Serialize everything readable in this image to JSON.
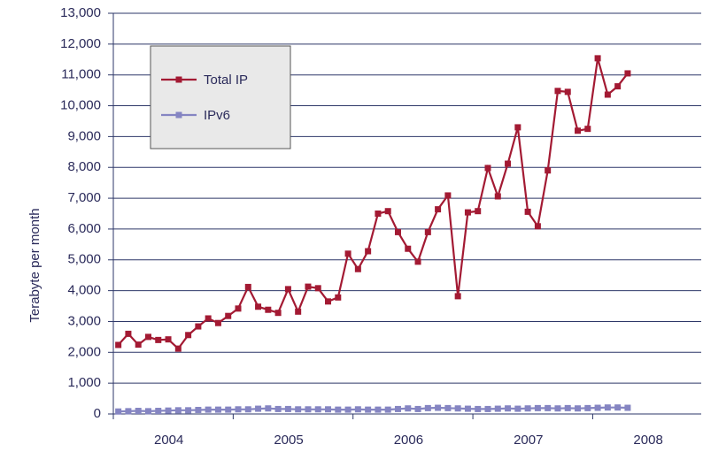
{
  "chart_data": {
    "type": "line",
    "y_label": "Terabyte per month",
    "categories": [
      "2004",
      null,
      null,
      null,
      null,
      null,
      null,
      null,
      null,
      null,
      null,
      null,
      "2005",
      null,
      null,
      null,
      null,
      null,
      null,
      null,
      null,
      null,
      null,
      null,
      "2006",
      null,
      null,
      null,
      null,
      null,
      null,
      null,
      null,
      null,
      null,
      null,
      "2007",
      null,
      null,
      null,
      null,
      null,
      null,
      null,
      null,
      null,
      null,
      null,
      "2008",
      null,
      null,
      null
    ],
    "series": [
      {
        "name": "Total IP",
        "color": "#a31a33",
        "values": [
          2240,
          2600,
          2250,
          2500,
          2400,
          2420,
          2120,
          2560,
          2840,
          3100,
          2950,
          3180,
          3420,
          4120,
          3480,
          3380,
          3280,
          4050,
          3320,
          4130,
          4080,
          3650,
          3780,
          5200,
          4700,
          5280,
          6500,
          6580,
          5900,
          5360,
          4940,
          5900,
          6640,
          7090,
          3820,
          6540,
          6580,
          7980,
          7060,
          8120,
          9300,
          6560,
          6090,
          7900,
          10480,
          10450,
          9190,
          9250,
          11540,
          10360,
          10630,
          11050
        ]
      },
      {
        "name": "IPv6",
        "color": "#8585c2",
        "values": [
          80,
          90,
          100,
          90,
          100,
          110,
          120,
          120,
          130,
          140,
          140,
          140,
          150,
          150,
          170,
          180,
          160,
          160,
          150,
          150,
          150,
          150,
          140,
          140,
          150,
          140,
          140,
          140,
          160,
          180,
          160,
          190,
          200,
          190,
          180,
          170,
          160,
          160,
          170,
          180,
          170,
          180,
          190,
          190,
          180,
          190,
          180,
          190,
          200,
          210,
          210,
          200
        ]
      }
    ],
    "ylim": [
      0,
      13000
    ],
    "yticks": [
      0,
      {
        "value": 1000,
        "label": "1,000"
      },
      {
        "value": 2000,
        "label": "2,000"
      },
      {
        "value": 3000,
        "label": "3,000"
      },
      {
        "value": 4000,
        "label": "4,000"
      },
      {
        "value": 5000,
        "label": "5,000"
      },
      {
        "value": 6000,
        "label": "6,000"
      },
      {
        "value": 7000,
        "label": "7,000"
      },
      {
        "value": 8000,
        "label": "8,000"
      },
      {
        "value": 9000,
        "label": "9,000"
      },
      {
        "value": 10000,
        "label": "10,000"
      },
      {
        "value": 11000,
        "label": "11,000"
      },
      {
        "value": 12000,
        "label": "12,000"
      },
      {
        "value": 13000,
        "label": "13,000"
      }
    ],
    "grid": true,
    "legend": "upper left"
  }
}
